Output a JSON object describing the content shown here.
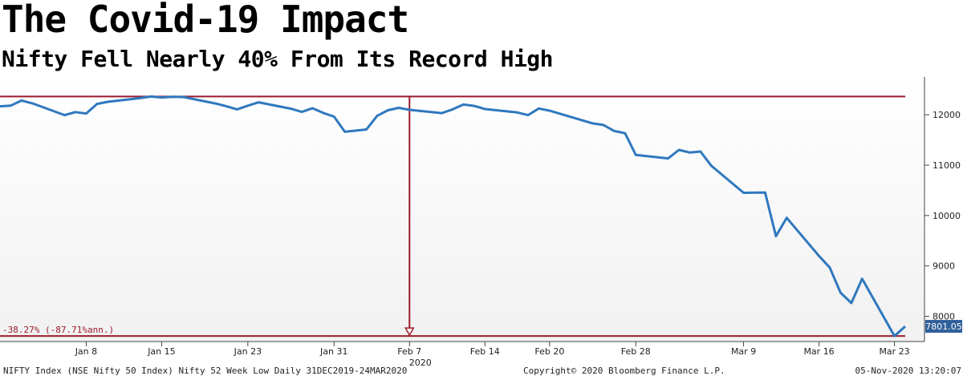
{
  "title": "The Covid-19 Impact",
  "subtitle": "Nifty Fell Nearly 40% From Its Record High",
  "chart_data": {
    "type": "line",
    "x": [
      "2019-12-31",
      "2020-01-01",
      "2020-01-02",
      "2020-01-03",
      "2020-01-06",
      "2020-01-07",
      "2020-01-08",
      "2020-01-09",
      "2020-01-10",
      "2020-01-13",
      "2020-01-14",
      "2020-01-15",
      "2020-01-16",
      "2020-01-17",
      "2020-01-20",
      "2020-01-21",
      "2020-01-22",
      "2020-01-23",
      "2020-01-24",
      "2020-01-27",
      "2020-01-28",
      "2020-01-29",
      "2020-01-30",
      "2020-01-31",
      "2020-02-01",
      "2020-02-03",
      "2020-02-04",
      "2020-02-05",
      "2020-02-06",
      "2020-02-07",
      "2020-02-10",
      "2020-02-11",
      "2020-02-12",
      "2020-02-13",
      "2020-02-14",
      "2020-02-17",
      "2020-02-18",
      "2020-02-19",
      "2020-02-20",
      "2020-02-24",
      "2020-02-25",
      "2020-02-26",
      "2020-02-27",
      "2020-02-28",
      "2020-03-02",
      "2020-03-03",
      "2020-03-04",
      "2020-03-05",
      "2020-03-06",
      "2020-03-09",
      "2020-03-11",
      "2020-03-12",
      "2020-03-13",
      "2020-03-16",
      "2020-03-17",
      "2020-03-18",
      "2020-03-19",
      "2020-03-20",
      "2020-03-23",
      "2020-03-24"
    ],
    "series": [
      {
        "values": [
          12168,
          12182,
          12282,
          12226,
          11993,
          12053,
          12025,
          12216,
          12257,
          12330,
          12362,
          12343,
          12355,
          12352,
          12224,
          12170,
          12107,
          12180,
          12248,
          12120,
          12056,
          12130,
          12036,
          11962,
          11662,
          11708,
          11980,
          12090,
          12138,
          12098,
          12032,
          12108,
          12202,
          12175,
          12113,
          12046,
          11993,
          12125,
          12080,
          11829,
          11797,
          11678,
          11633,
          11202,
          11133,
          11303,
          11251,
          11270,
          10989,
          10451,
          10458,
          9590,
          9955,
          9198,
          8967,
          8469,
          8264,
          8745,
          7610,
          7801.05
        ],
        "color": "#2f78be"
      }
    ],
    "ylim": [
      7500,
      12750
    ],
    "yticks": [
      8000,
      9000,
      10000,
      11000,
      12000
    ],
    "xtick_labels": [
      "Jan 8",
      "Jan 15",
      "Jan 23",
      "Jan 31",
      "Feb 7",
      "Feb 14",
      "Feb 20",
      "Feb 28",
      "Mar 9",
      "Mar 16",
      "Mar 23"
    ],
    "xtick_dates": [
      "2020-01-08",
      "2020-01-15",
      "2020-01-23",
      "2020-01-31",
      "2020-02-07",
      "2020-02-14",
      "2020-02-20",
      "2020-02-28",
      "2020-03-09",
      "2020-03-16",
      "2020-03-23"
    ],
    "year_label": "2020",
    "high_level": 12362,
    "low_level": 7610,
    "last_value_label": "7801.05",
    "change_annotation": "-38.27% (-87.71%ann.)",
    "line_color": "#2f78be",
    "reference_line_color": "#9b1b2b",
    "grid": false
  },
  "footer": {
    "left": "NIFTY Index (NSE Nifty 50 Index) Nifty 52 Week Low  Daily 31DEC2019-24MAR2020",
    "center": "Copyright© 2020 Bloomberg Finance L.P.",
    "right": "05-Nov-2020 13:20:07"
  }
}
